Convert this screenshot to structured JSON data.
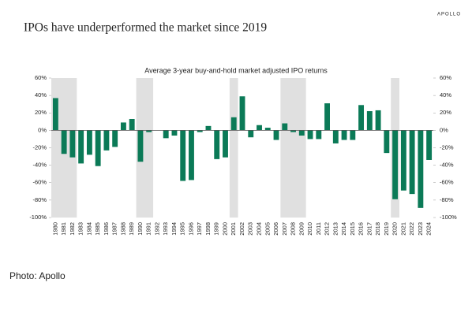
{
  "brand": "APOLLO",
  "caption": "Photo: Apollo",
  "chart_data": {
    "type": "bar",
    "title": "IPOs have underperformed the market since 2019",
    "subtitle": "Average 3-year buy-and-hold market adjusted IPO returns",
    "categories": [
      "1980",
      "1981",
      "1982",
      "1983",
      "1984",
      "1985",
      "1986",
      "1987",
      "1988",
      "1989",
      "1990",
      "1991",
      "1992",
      "1993",
      "1994",
      "1995",
      "1996",
      "1997",
      "1998",
      "1999",
      "2000",
      "2001",
      "2002",
      "2003",
      "2004",
      "2005",
      "2006",
      "2007",
      "2008",
      "2009",
      "2010",
      "2011",
      "2012",
      "2013",
      "2014",
      "2015",
      "2016",
      "2017",
      "2018",
      "2019",
      "2020",
      "2021",
      "2022",
      "2023",
      "2024"
    ],
    "values": [
      37,
      -27,
      -31,
      -38,
      -28,
      -41,
      -23,
      -19,
      9,
      13,
      -36,
      -2,
      0,
      -9,
      -6,
      -58,
      -57,
      -2,
      5,
      -33,
      -31,
      15,
      39,
      -8,
      6,
      3,
      -11,
      8,
      -2,
      -6,
      -10,
      -10,
      31,
      -15,
      -11,
      -11,
      29,
      22,
      23,
      -26,
      -79,
      -69,
      -73,
      -89,
      -34
    ],
    "color": "#0b7a57",
    "shaded": [
      [
        "1980",
        "1982"
      ],
      [
        "1990",
        "1991"
      ],
      [
        "2001",
        "2001"
      ],
      [
        "2007",
        "2009"
      ],
      [
        "2020",
        "2020"
      ]
    ],
    "shade_color": "#e0e0e0",
    "ylim": [
      -100,
      60
    ],
    "yticks": [
      {
        "value": -100,
        "label": "-100%"
      },
      {
        "value": -80,
        "label": "-80%"
      },
      {
        "value": -60,
        "label": "-60%"
      },
      {
        "value": -40,
        "label": "-40%"
      },
      {
        "value": -20,
        "label": "-20%"
      },
      {
        "value": 0,
        "label": "0%"
      },
      {
        "value": 20,
        "label": "20%"
      },
      {
        "value": 40,
        "label": "40%"
      },
      {
        "value": 60,
        "label": "60%"
      }
    ],
    "y2lim": [
      -100,
      60
    ],
    "y2ticks": [
      {
        "value": -100,
        "label": "-100%"
      },
      {
        "value": -80,
        "label": "-80%"
      },
      {
        "value": -60,
        "label": "-60%"
      },
      {
        "value": -40,
        "label": "-40%"
      },
      {
        "value": -20,
        "label": "-20%"
      },
      {
        "value": 0,
        "label": "0%"
      },
      {
        "value": 20,
        "label": "20%"
      },
      {
        "value": 40,
        "label": "40%"
      },
      {
        "value": 60,
        "label": "60%"
      }
    ]
  }
}
